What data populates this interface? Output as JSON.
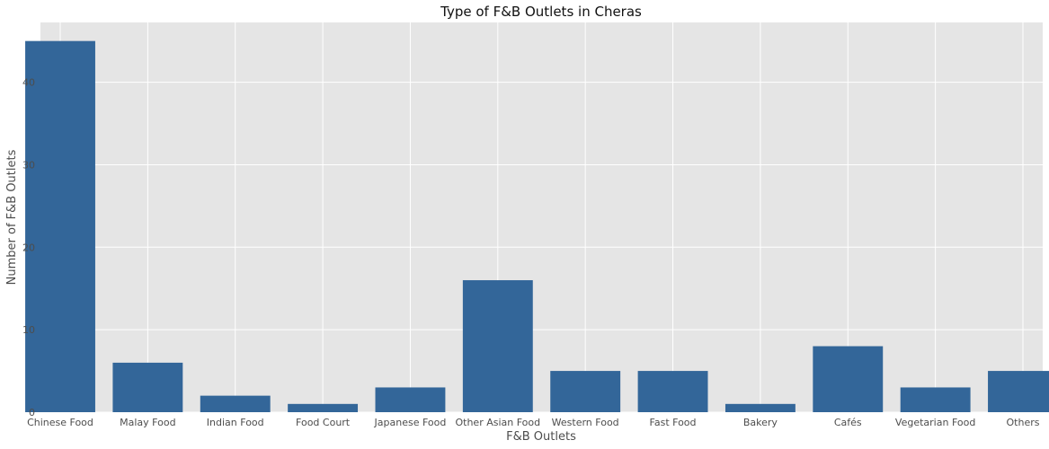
{
  "chart_data": {
    "type": "bar",
    "title": "Type of F&B Outlets in Cheras",
    "xlabel": "F&B Outlets",
    "ylabel": "Number of F&B Outlets",
    "categories": [
      "Chinese Food",
      "Malay Food",
      "Indian Food",
      "Food Court",
      "Japanese Food",
      "Other Asian Food",
      "Western Food",
      "Fast Food",
      "Bakery",
      "Cafés",
      "Vegetarian Food",
      "Others"
    ],
    "values": [
      45,
      6,
      2,
      1,
      3,
      16,
      5,
      5,
      1,
      8,
      3,
      5
    ],
    "ylim": [
      0,
      47.25
    ],
    "yticks": [
      0,
      10,
      20,
      30,
      40
    ],
    "grid": true,
    "colors": {
      "bar": "#336699",
      "plot_background": "#e5e5e5",
      "grid": "#ffffff"
    }
  }
}
